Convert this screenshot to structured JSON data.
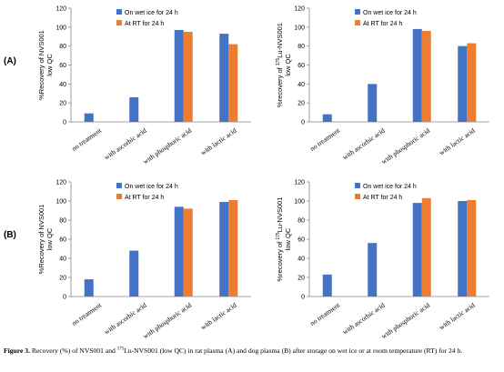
{
  "panel_labels": [
    "(A)",
    "(B)"
  ],
  "caption": {
    "label": "Figure 3.",
    "part1": " Recovery (%) of NVS001 and ",
    "superscript": "175",
    "part2": "Lu-NVS001 (low QC) in rat plasma (A) and dog plasma (B) after storage on wet ice or at room temperature (RT) for 24 h."
  },
  "colors": {
    "wet_ice": "#4472C4",
    "rt": "#ED7D31",
    "axis": "#888888"
  },
  "chart_data": [
    {
      "type": "bar",
      "panel": "(A)",
      "ylabel": "%Recovery of NVS001",
      "ylabel_line2": "low QC",
      "ylim": [
        0,
        120
      ],
      "yticks": [
        0,
        20,
        40,
        60,
        80,
        100,
        120
      ],
      "categories": [
        "no treatment",
        "with ascorbic acid",
        "with phosphoric acid",
        "with lactic acid"
      ],
      "series": [
        {
          "name": "On wet ice for 24 h",
          "values": [
            9,
            26,
            97,
            93
          ]
        },
        {
          "name": "At RT for 24 h",
          "values": [
            null,
            null,
            95,
            82
          ]
        }
      ],
      "legend": "top-left",
      "grid": false
    },
    {
      "type": "bar",
      "panel": "(A)",
      "ylabel_prefix": "%recovery of ",
      "ylabel_sup": "175",
      "ylabel_suffix": "Lu-NVS001",
      "ylabel_line2": "low QC",
      "ylim": [
        0,
        120
      ],
      "yticks": [
        0,
        20,
        40,
        60,
        80,
        100,
        120
      ],
      "categories": [
        "no treatment",
        "with ascorbic acid",
        "with phosphoric acid",
        "with lactic acid"
      ],
      "series": [
        {
          "name": "On wet ice for 24 h",
          "values": [
            8,
            40,
            98,
            80
          ]
        },
        {
          "name": "At RT for 24 h",
          "values": [
            null,
            null,
            96,
            83
          ]
        }
      ],
      "legend": "top-left",
      "grid": false
    },
    {
      "type": "bar",
      "panel": "(B)",
      "ylabel": "%Recovery of NVS001",
      "ylabel_line2": "low QC",
      "ylim": [
        0,
        120
      ],
      "yticks": [
        0,
        20,
        40,
        60,
        80,
        100,
        120
      ],
      "categories": [
        "no treatment",
        "with ascorbic acid",
        "with phosphoric acid",
        "with lactic acid"
      ],
      "series": [
        {
          "name": "On wet ice for 24 h",
          "values": [
            18,
            48,
            94,
            99
          ]
        },
        {
          "name": "At RT for 24 h",
          "values": [
            null,
            null,
            92,
            101
          ]
        }
      ],
      "legend": "top-left",
      "grid": false
    },
    {
      "type": "bar",
      "panel": "(B)",
      "ylabel_prefix": "%recovery of ",
      "ylabel_sup": "175",
      "ylabel_suffix": "Lu-NVS001",
      "ylabel_line2": "low QC",
      "ylim": [
        0,
        120
      ],
      "yticks": [
        0,
        20,
        40,
        60,
        80,
        100,
        120
      ],
      "categories": [
        "no treatment",
        "with ascorbic acid",
        "with phosphoric acid",
        "with lactic acid"
      ],
      "series": [
        {
          "name": "On wet ice for 24 h",
          "values": [
            23,
            56,
            98,
            100
          ]
        },
        {
          "name": "At RT for 24 h",
          "values": [
            null,
            null,
            103,
            101
          ]
        }
      ],
      "legend": "top-left",
      "grid": false
    }
  ]
}
